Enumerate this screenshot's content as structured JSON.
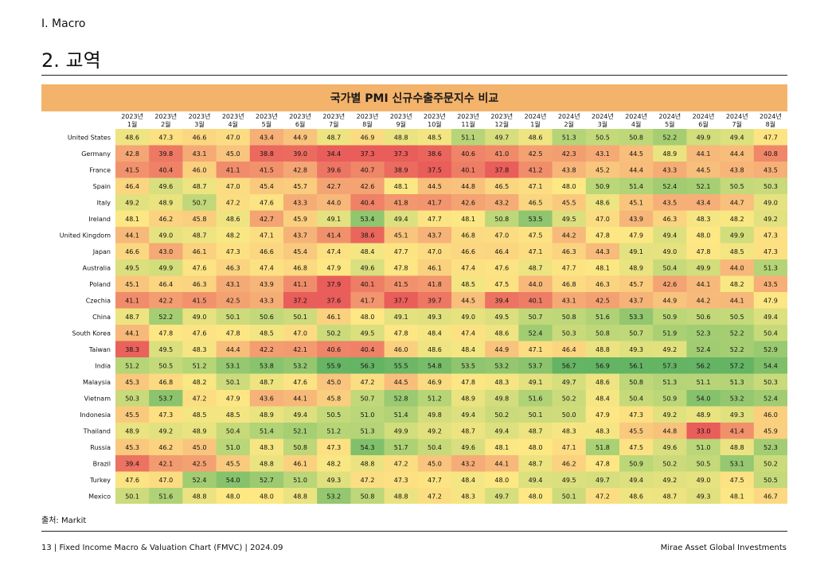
{
  "header": {
    "section": "I. Macro",
    "title": "2. 교역"
  },
  "footer": {
    "source": "출처: Markit",
    "page_info": "13 | Fixed Income Macro & Valuation Chart (FMVC) | 2024.09",
    "company": "Mirae Asset Global Investments"
  },
  "chart_data": {
    "type": "heatmap",
    "title": "국가별 PMI 신규수출주문지수 비교",
    "columns": [
      {
        "year": "2023년",
        "month": "1월"
      },
      {
        "year": "2023년",
        "month": "2월"
      },
      {
        "year": "2023년",
        "month": "3월"
      },
      {
        "year": "2023년",
        "month": "4월"
      },
      {
        "year": "2023년",
        "month": "5월"
      },
      {
        "year": "2023년",
        "month": "6월"
      },
      {
        "year": "2023년",
        "month": "7월"
      },
      {
        "year": "2023년",
        "month": "8월"
      },
      {
        "year": "2023년",
        "month": "9월"
      },
      {
        "year": "2023년",
        "month": "10월"
      },
      {
        "year": "2023년",
        "month": "11월"
      },
      {
        "year": "2023년",
        "month": "12월"
      },
      {
        "year": "2024년",
        "month": "1월"
      },
      {
        "year": "2024년",
        "month": "2월"
      },
      {
        "year": "2024년",
        "month": "3월"
      },
      {
        "year": "2024년",
        "month": "4월"
      },
      {
        "year": "2024년",
        "month": "5월"
      },
      {
        "year": "2024년",
        "month": "6월"
      },
      {
        "year": "2024년",
        "month": "7월"
      },
      {
        "year": "2024년",
        "month": "8월"
      }
    ],
    "rows": [
      {
        "country": "United States",
        "values": [
          48.6,
          47.3,
          46.6,
          47.0,
          43.4,
          44.9,
          48.7,
          46.9,
          48.8,
          48.5,
          51.1,
          49.7,
          48.6,
          51.3,
          50.5,
          50.8,
          52.2,
          49.9,
          49.4,
          47.7
        ]
      },
      {
        "country": "Germany",
        "values": [
          42.8,
          39.8,
          43.1,
          45.0,
          38.8,
          39.0,
          34.4,
          37.3,
          37.3,
          38.6,
          40.6,
          41.0,
          42.5,
          42.3,
          43.1,
          44.5,
          48.9,
          44.1,
          44.4,
          40.8
        ]
      },
      {
        "country": "France",
        "values": [
          41.5,
          40.4,
          46.0,
          41.1,
          41.5,
          42.8,
          39.6,
          40.7,
          38.9,
          37.5,
          40.1,
          37.8,
          41.2,
          43.8,
          45.2,
          44.4,
          43.3,
          44.5,
          43.8,
          43.5
        ]
      },
      {
        "country": "Spain",
        "values": [
          46.4,
          49.6,
          48.7,
          47.0,
          45.4,
          45.7,
          42.7,
          42.6,
          48.1,
          44.5,
          44.8,
          46.5,
          47.1,
          48.0,
          50.9,
          51.4,
          52.4,
          52.1,
          50.5,
          50.3
        ]
      },
      {
        "country": "Italy",
        "values": [
          49.2,
          48.9,
          50.7,
          47.2,
          47.6,
          43.3,
          44.0,
          40.4,
          41.8,
          41.7,
          42.6,
          43.2,
          46.5,
          45.5,
          48.6,
          45.1,
          43.5,
          43.4,
          44.7,
          49.0
        ]
      },
      {
        "country": "Ireland",
        "values": [
          48.1,
          46.2,
          45.8,
          48.6,
          42.7,
          45.9,
          49.1,
          53.4,
          49.4,
          47.7,
          48.1,
          50.8,
          53.5,
          49.5,
          47.0,
          43.9,
          46.3,
          48.3,
          48.2,
          49.2
        ]
      },
      {
        "country": "United Kingdom",
        "values": [
          44.1,
          49.0,
          48.7,
          48.2,
          47.1,
          43.7,
          41.4,
          38.6,
          45.1,
          43.7,
          46.8,
          47.0,
          47.5,
          44.2,
          47.8,
          47.9,
          49.4,
          48.0,
          49.9,
          47.3
        ]
      },
      {
        "country": "Japan",
        "values": [
          46.6,
          43.0,
          46.1,
          47.3,
          46.6,
          45.4,
          47.4,
          48.4,
          47.7,
          47.0,
          46.6,
          46.4,
          47.1,
          46.3,
          44.3,
          49.1,
          49.0,
          47.8,
          48.5,
          47.3
        ]
      },
      {
        "country": "Australia",
        "values": [
          49.5,
          49.9,
          47.6,
          46.3,
          47.4,
          46.8,
          47.9,
          49.6,
          47.8,
          46.1,
          47.4,
          47.6,
          48.7,
          47.7,
          48.1,
          48.9,
          50.4,
          49.9,
          44.0,
          51.3
        ]
      },
      {
        "country": "Poland",
        "values": [
          45.1,
          46.4,
          46.3,
          43.1,
          43.9,
          41.1,
          37.9,
          40.1,
          41.5,
          41.8,
          48.5,
          47.5,
          44.0,
          46.8,
          46.3,
          45.7,
          42.6,
          44.1,
          48.2,
          43.5
        ]
      },
      {
        "country": "Czechia",
        "values": [
          41.1,
          42.2,
          41.5,
          42.5,
          43.3,
          37.2,
          37.6,
          41.7,
          37.7,
          39.7,
          44.5,
          39.4,
          40.1,
          43.1,
          42.5,
          43.7,
          44.9,
          44.2,
          44.1,
          47.9
        ]
      },
      {
        "country": "China",
        "values": [
          48.7,
          52.2,
          49.0,
          50.1,
          50.6,
          50.1,
          46.1,
          48.0,
          49.1,
          49.3,
          49.0,
          49.5,
          50.7,
          50.8,
          51.6,
          53.3,
          50.9,
          50.6,
          50.5,
          49.4
        ]
      },
      {
        "country": "South Korea",
        "values": [
          44.1,
          47.8,
          47.6,
          47.8,
          48.5,
          47.0,
          50.2,
          49.5,
          47.8,
          48.4,
          47.4,
          48.6,
          52.4,
          50.3,
          50.8,
          50.7,
          51.9,
          52.3,
          52.2,
          50.4
        ]
      },
      {
        "country": "Taiwan",
        "values": [
          38.3,
          49.5,
          48.3,
          44.4,
          42.2,
          42.1,
          40.6,
          40.4,
          46.0,
          48.6,
          48.4,
          44.9,
          47.1,
          46.4,
          48.8,
          49.3,
          49.2,
          52.4,
          52.2,
          52.9
        ]
      },
      {
        "country": "India",
        "values": [
          51.2,
          50.5,
          51.2,
          53.1,
          53.8,
          53.2,
          55.9,
          56.3,
          55.5,
          54.8,
          53.5,
          53.2,
          53.7,
          56.7,
          56.9,
          56.1,
          57.3,
          56.2,
          57.2,
          54.4
        ]
      },
      {
        "country": "Malaysia",
        "values": [
          45.3,
          46.8,
          48.2,
          50.1,
          48.7,
          47.6,
          45.0,
          47.2,
          44.5,
          46.9,
          47.8,
          48.3,
          49.1,
          49.7,
          48.6,
          50.8,
          51.3,
          51.1,
          51.3,
          50.3
        ]
      },
      {
        "country": "Vietnam",
        "values": [
          50.3,
          53.7,
          47.2,
          47.9,
          43.6,
          44.1,
          45.8,
          50.7,
          52.8,
          51.2,
          48.9,
          49.8,
          51.6,
          50.2,
          48.4,
          50.4,
          50.9,
          54.0,
          53.2,
          52.4
        ]
      },
      {
        "country": "Indonesia",
        "values": [
          45.5,
          47.3,
          48.5,
          48.5,
          48.9,
          49.4,
          50.5,
          51.0,
          51.4,
          49.8,
          49.4,
          50.2,
          50.1,
          50.0,
          47.9,
          47.3,
          49.2,
          48.9,
          49.3,
          46.0
        ]
      },
      {
        "country": "Thailand",
        "values": [
          48.9,
          49.2,
          48.9,
          50.4,
          51.4,
          52.1,
          51.2,
          51.3,
          49.9,
          49.2,
          48.7,
          49.4,
          48.7,
          48.3,
          48.3,
          45.5,
          44.8,
          33.0,
          41.4,
          45.9
        ]
      },
      {
        "country": "Russia",
        "values": [
          45.3,
          46.2,
          45.0,
          51.0,
          48.3,
          50.8,
          47.3,
          54.3,
          51.7,
          50.4,
          49.6,
          48.1,
          48.0,
          47.1,
          51.8,
          47.5,
          49.6,
          51.0,
          48.8,
          52.3
        ]
      },
      {
        "country": "Brazil",
        "values": [
          39.4,
          42.1,
          42.5,
          45.5,
          48.8,
          46.1,
          48.2,
          48.8,
          47.2,
          45.0,
          43.2,
          44.1,
          48.7,
          46.2,
          47.8,
          50.9,
          50.2,
          50.5,
          53.1,
          50.2
        ]
      },
      {
        "country": "Turkey",
        "values": [
          47.6,
          47.0,
          52.4,
          54.0,
          52.7,
          51.0,
          49.3,
          47.2,
          47.3,
          47.7,
          48.4,
          48.0,
          49.4,
          49.5,
          49.7,
          49.4,
          49.2,
          49.0,
          47.5,
          50.5
        ]
      },
      {
        "country": "Mexico",
        "values": [
          50.1,
          51.6,
          48.8,
          48.0,
          48.0,
          48.8,
          53.2,
          50.8,
          48.8,
          47.2,
          48.3,
          49.7,
          48.0,
          50.1,
          47.2,
          48.6,
          48.7,
          49.3,
          48.1,
          46.7
        ]
      }
    ]
  }
}
